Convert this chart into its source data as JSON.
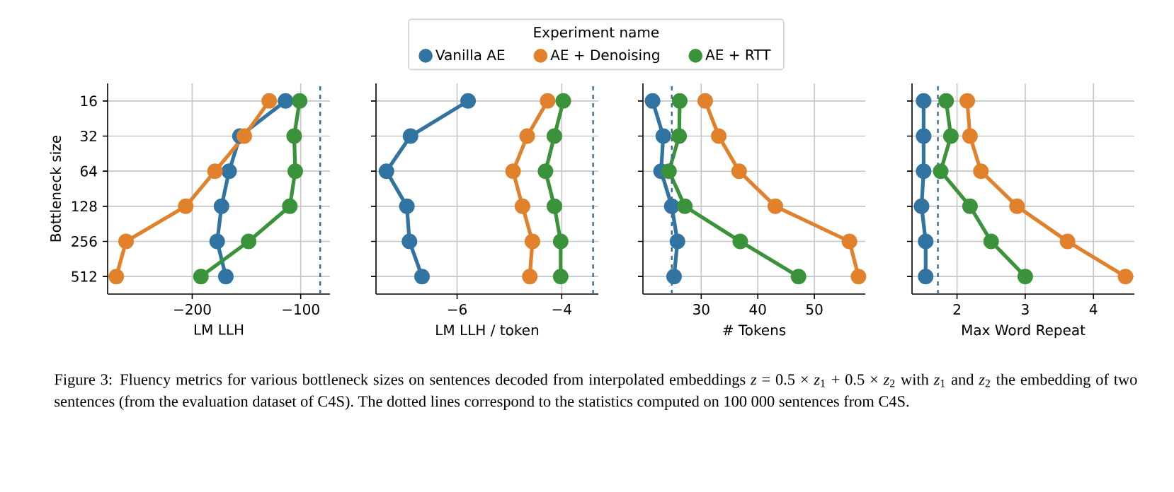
{
  "chart_data": [
    {
      "type": "line",
      "orientation": "horizontal",
      "categories": [
        "16",
        "32",
        "64",
        "128",
        "256",
        "512"
      ],
      "xlabel": "LM LLH",
      "ylabel": "Bottleneck size",
      "xlim": [
        -278,
        -73
      ],
      "xticks": [
        {
          "value": -200,
          "label": "−200"
        },
        {
          "value": -100,
          "label": "−100"
        }
      ],
      "grid": true,
      "marker": "circle",
      "series": [
        {
          "color": "#3274a1",
          "values": [
            -114,
            -156,
            -166,
            -173,
            -177,
            -169
          ]
        },
        {
          "color": "#e1812c",
          "values": [
            -129,
            -152,
            -179,
            -206,
            -261,
            -270
          ]
        },
        {
          "color": "#3a923a",
          "values": [
            -101,
            -106,
            -105,
            -110,
            -148,
            -192
          ]
        }
      ],
      "ref_lines": [
        {
          "axis": "x",
          "value": -82,
          "color": "#3a6e9a",
          "line_style": "dashed"
        }
      ],
      "annotations": [
        "Figure 3: Fluency metrics for various bottleneck sizes on sentences decoded from interpolated embeddings *z* = 0.5 × *z*$_{1}$ + 0.5 × *z*$_{2}$ with *z*$_{1}$ and *z*$_{2}$ the embedding of two sentences (from the evaluation dataset of C4S). The dotted lines correspond to the statistics computed on 100 000 sentences from C4S."
      ]
    },
    {
      "type": "line",
      "orientation": "horizontal",
      "categories": [
        "16",
        "32",
        "64",
        "128",
        "256",
        "512"
      ],
      "xlabel": "LM LLH / token",
      "xlim": [
        -7.55,
        -3.3
      ],
      "xticks": [
        {
          "value": -6,
          "label": "−6"
        },
        {
          "value": -4,
          "label": "−4"
        }
      ],
      "grid": true,
      "marker": "circle",
      "tick_labels": "x",
      "legend": "top",
      "legend_title": "Experiment name",
      "series": [
        {
          "name": "Vanilla AE",
          "color": "#3274a1",
          "values": [
            -5.79,
            -6.89,
            -7.35,
            -6.96,
            -6.91,
            -6.67
          ]
        },
        {
          "name": "AE + Denoising",
          "color": "#e1812c",
          "values": [
            -4.27,
            -4.66,
            -4.93,
            -4.75,
            -4.56,
            -4.61
          ]
        },
        {
          "name": "AE + RTT",
          "color": "#3a923a",
          "values": [
            -3.97,
            -4.14,
            -4.31,
            -4.14,
            -4.02,
            -4.02
          ]
        }
      ],
      "ref_lines": [
        {
          "axis": "x",
          "value": -3.4,
          "color": "#3a6e9a",
          "line_style": "dashed"
        }
      ]
    },
    {
      "type": "line",
      "orientation": "horizontal",
      "categories": [
        "16",
        "32",
        "64",
        "128",
        "256",
        "512"
      ],
      "xlabel": "# Tokens",
      "xlim": [
        19.7,
        59
      ],
      "xticks": [
        30,
        40,
        50
      ],
      "grid": true,
      "marker": "circle",
      "tick_labels": "x",
      "series": [
        {
          "color": "#3274a1",
          "values": [
            21.4,
            23.3,
            22.9,
            24.8,
            25.8,
            25.2
          ]
        },
        {
          "color": "#e1812c",
          "values": [
            30.7,
            33.1,
            36.7,
            43.1,
            56.2,
            57.8
          ]
        },
        {
          "color": "#3a923a",
          "values": [
            26.2,
            26.1,
            24.3,
            27.1,
            36.9,
            47.2
          ]
        }
      ],
      "ref_lines": [
        {
          "axis": "x",
          "value": 24.8,
          "color": "#3a6e9a",
          "line_style": "dashed"
        }
      ]
    },
    {
      "type": "line",
      "orientation": "horizontal",
      "categories": [
        "16",
        "32",
        "64",
        "128",
        "256",
        "512"
      ],
      "xlabel": "Max Word Repeat",
      "xlim": [
        1.34,
        4.6
      ],
      "xticks": [
        2,
        3,
        4
      ],
      "grid": true,
      "marker": "circle",
      "tick_labels": "x",
      "series": [
        {
          "color": "#3274a1",
          "values": [
            1.51,
            1.51,
            1.51,
            1.48,
            1.54,
            1.54
          ]
        },
        {
          "color": "#e1812c",
          "values": [
            2.15,
            2.19,
            2.35,
            2.88,
            3.62,
            4.47
          ]
        },
        {
          "color": "#3a923a",
          "values": [
            1.84,
            1.91,
            1.76,
            2.19,
            2.5,
            3.0
          ]
        }
      ],
      "ref_lines": [
        {
          "axis": "x",
          "value": 1.72,
          "color": "#3a6e9a",
          "line_style": "dashed"
        }
      ]
    }
  ]
}
